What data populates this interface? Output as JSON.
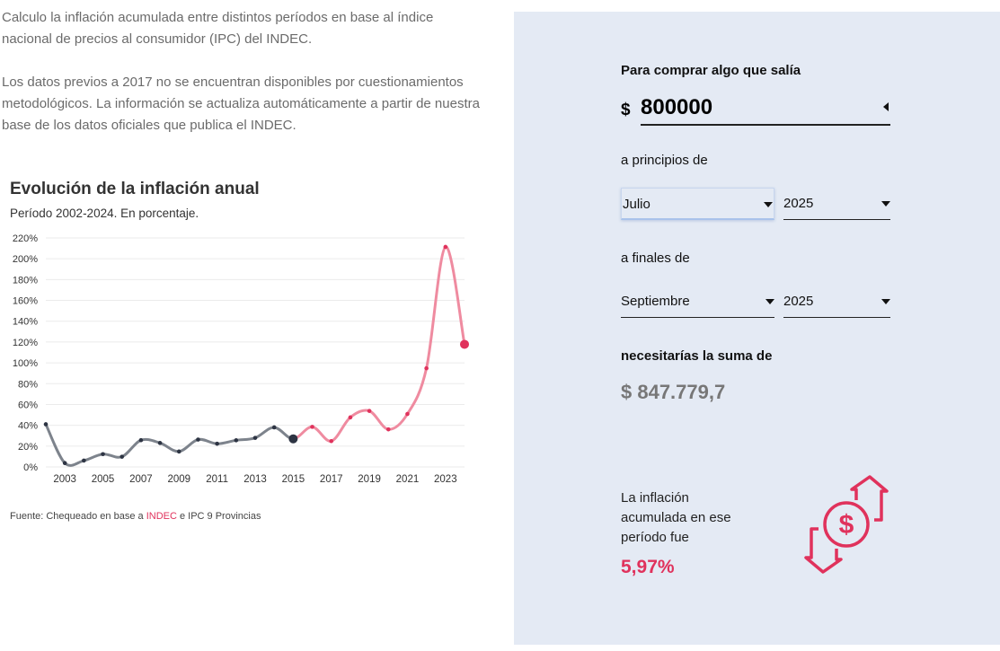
{
  "intro": {
    "p1": "Calculo la inflación acumulada entre distintos períodos en base al índice nacional de precios al consumidor (IPC) del INDEC.",
    "p2": "Los datos previos a 2017 no se encuentran disponibles por cuestionamientos metodológicos. La información se actualiza automáticamente a partir de nuestra base de los datos oficiales que publica el INDEC."
  },
  "chart_data": {
    "type": "line",
    "title": "Evolución de la inflación anual",
    "subtitle": "Período 2002-2024. En porcentaje.",
    "x": [
      2002,
      2003,
      2004,
      2005,
      2006,
      2007,
      2008,
      2009,
      2010,
      2011,
      2012,
      2013,
      2014,
      2015,
      2016,
      2017,
      2018,
      2019,
      2020,
      2021,
      2022,
      2023,
      2024
    ],
    "values": [
      41,
      3.7,
      6.1,
      12.3,
      9.8,
      25.7,
      23,
      14.8,
      26.3,
      22.3,
      25.6,
      27.9,
      38,
      27,
      38.5,
      24.8,
      47.6,
      53.8,
      36.1,
      50.9,
      94.8,
      211.4,
      117.8
    ],
    "series_split_year": 2015,
    "colors": {
      "before": "#7d838c",
      "after": "#ef8ba0",
      "dot_before": "#2d3443",
      "dot_after": "#e0325c",
      "grid": "#ebebeb"
    },
    "ylim": [
      0,
      220
    ],
    "yticks": [
      "0%",
      "20%",
      "40%",
      "60%",
      "80%",
      "100%",
      "120%",
      "140%",
      "160%",
      "180%",
      "200%",
      "220%"
    ],
    "xticks": [
      "2003",
      "2005",
      "2007",
      "2009",
      "2011",
      "2013",
      "2015",
      "2017",
      "2019",
      "2021",
      "2023"
    ],
    "grid": true,
    "source_prefix": "Fuente: Chequeado en base a ",
    "source_link": "INDEC",
    "source_suffix": " e IPC 9 Provincias"
  },
  "calculator": {
    "amount_label": "Para comprar algo que salía",
    "currency": "$",
    "amount_value": "800000",
    "start_label": "a principios de",
    "start_month": "Julio",
    "start_year": "2025",
    "end_label": "a finales de",
    "end_month": "Septiembre",
    "end_year": "2025",
    "result_label": "necesitarías la suma de",
    "result_value": "$ 847.779,7",
    "inflation_text": "La inflación acumulada en ese período fue",
    "inflation_value": "5,97%",
    "accent": "#e0325c"
  }
}
